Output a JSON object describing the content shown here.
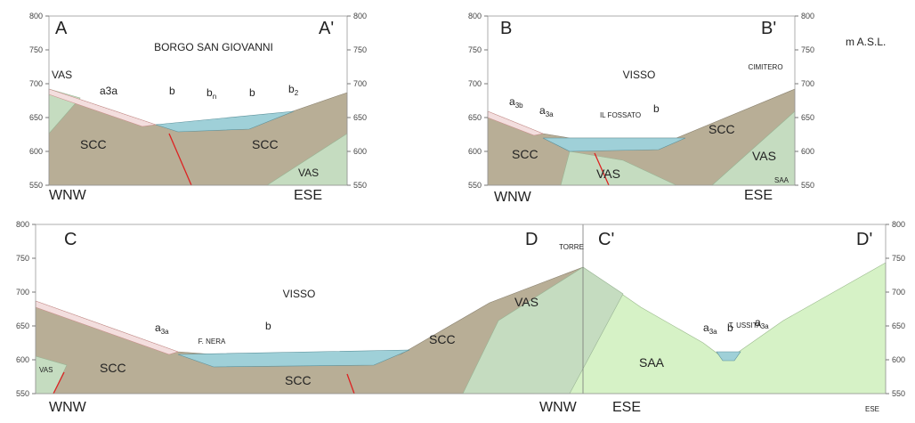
{
  "unit": "m A.S.L.",
  "elevation_ticks": [
    "800",
    "750",
    "700",
    "650",
    "600",
    "550"
  ],
  "panel_a": {
    "left": "A",
    "right": "A'",
    "place": "BORGO SAN GIOVANNI",
    "units": [
      "VAS",
      "a3a",
      "b",
      "b",
      "n",
      "b",
      "b",
      "2",
      "SCC",
      "SCC",
      "VAS"
    ],
    "left_dir": "WNW",
    "right_dir": "ESE"
  },
  "panel_b": {
    "left": "B",
    "right": "B'",
    "place": "VISSO",
    "site": "CIMITERO",
    "units": [
      "a",
      "3b",
      "a",
      "3a",
      "IL FOSSATO",
      "b",
      "SCC",
      "VAS",
      "SCC",
      "VAS",
      "SAA"
    ],
    "left_dir": "WNW",
    "right_dir": "ESE"
  },
  "panel_c": {
    "labels": [
      "C",
      "D",
      "TORRE",
      "C'",
      "D'"
    ],
    "place": "VISSO",
    "rivers": [
      "F. NERA",
      "T. USSITA"
    ],
    "units": [
      "a",
      "3a",
      "b",
      "SCC",
      "SCC",
      "SCC",
      "VAS",
      "VAS",
      "SAA",
      "a",
      "3a",
      "b",
      "a",
      "3a"
    ],
    "dirs": [
      "WNW",
      "WNW",
      "ESE",
      "ESE"
    ]
  }
}
